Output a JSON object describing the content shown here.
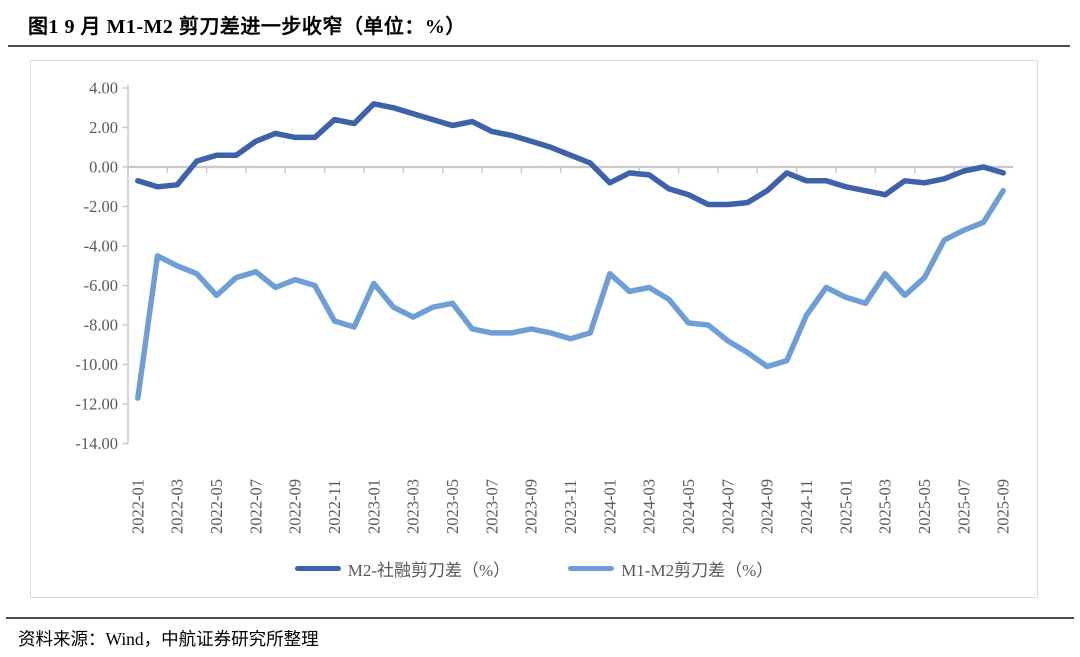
{
  "figure": {
    "title": "图1  9 月 M1-M2 剪刀差进一步收窄（单位：%）",
    "source": "资料来源：Wind，中航证券研究所整理"
  },
  "chart_data": {
    "type": "line",
    "title": "图1  9 月 M1-M2 剪刀差进一步收窄（单位：%）",
    "xlabel": "",
    "ylabel": "",
    "ylim": [
      -14,
      4
    ],
    "y_tick_step": 2,
    "y_tick_labels": [
      "4.00",
      "2.00",
      "0.00",
      "-2.00",
      "-4.00",
      "-6.00",
      "-8.00",
      "-10.00",
      "-12.00",
      "-14.00"
    ],
    "x": [
      "2022-01",
      "2022-02",
      "2022-03",
      "2022-04",
      "2022-05",
      "2022-06",
      "2022-07",
      "2022-08",
      "2022-09",
      "2022-10",
      "2022-11",
      "2022-12",
      "2023-01",
      "2023-02",
      "2023-03",
      "2023-04",
      "2023-05",
      "2023-06",
      "2023-07",
      "2023-08",
      "2023-09",
      "2023-10",
      "2023-11",
      "2023-12",
      "2024-01",
      "2024-02",
      "2024-03",
      "2024-04",
      "2024-05",
      "2024-06",
      "2024-07",
      "2024-08",
      "2024-09",
      "2024-10",
      "2024-11",
      "2024-12",
      "2025-01",
      "2025-02",
      "2025-03",
      "2025-04",
      "2025-05",
      "2025-06",
      "2025-07",
      "2025-08",
      "2025-09"
    ],
    "x_tick_labels": [
      "2022-01",
      "2022-03",
      "2022-05",
      "2022-07",
      "2022-09",
      "2022-11",
      "2023-01",
      "2023-03",
      "2023-05",
      "2023-07",
      "2023-09",
      "2023-11",
      "2024-01",
      "2024-03",
      "2024-05",
      "2024-07",
      "2024-09",
      "2024-11",
      "2025-01",
      "2025-03",
      "2025-05",
      "2025-07",
      "2025-09"
    ],
    "grid": false,
    "zero_line": true,
    "legend_position": "bottom",
    "series": [
      {
        "name": "M2-社融剪刀差（%）",
        "color": "#3E61AC",
        "values": [
          -0.7,
          -1.0,
          -0.9,
          0.3,
          0.6,
          0.6,
          1.3,
          1.7,
          1.5,
          1.5,
          2.4,
          2.2,
          3.2,
          3.0,
          2.7,
          2.4,
          2.1,
          2.3,
          1.8,
          1.6,
          1.3,
          1.0,
          0.6,
          0.2,
          -0.8,
          -0.3,
          -0.4,
          -1.1,
          -1.4,
          -1.9,
          -1.9,
          -1.8,
          -1.2,
          -0.3,
          -0.7,
          -0.7,
          -1.0,
          -1.2,
          -1.4,
          -0.7,
          -0.8,
          -0.6,
          -0.2,
          0.0,
          -0.3
        ]
      },
      {
        "name": "M1-M2剪刀差（%）",
        "color": "#6E9ED8",
        "values": [
          -11.7,
          -4.5,
          -5.0,
          -5.4,
          -6.5,
          -5.6,
          -5.3,
          -6.1,
          -5.7,
          -6.0,
          -7.8,
          -8.1,
          -5.9,
          -7.1,
          -7.6,
          -7.1,
          -6.9,
          -8.2,
          -8.4,
          -8.4,
          -8.2,
          -8.4,
          -8.7,
          -8.4,
          -5.4,
          -6.3,
          -6.1,
          -6.7,
          -7.9,
          -8.0,
          -8.8,
          -9.4,
          -10.1,
          -9.8,
          -7.5,
          -6.1,
          -6.6,
          -6.9,
          -5.4,
          -6.5,
          -5.6,
          -3.7,
          -3.2,
          -2.8,
          -1.2
        ]
      }
    ],
    "axis_color": "#c8c8c8",
    "tick_text_color": "#595959"
  }
}
